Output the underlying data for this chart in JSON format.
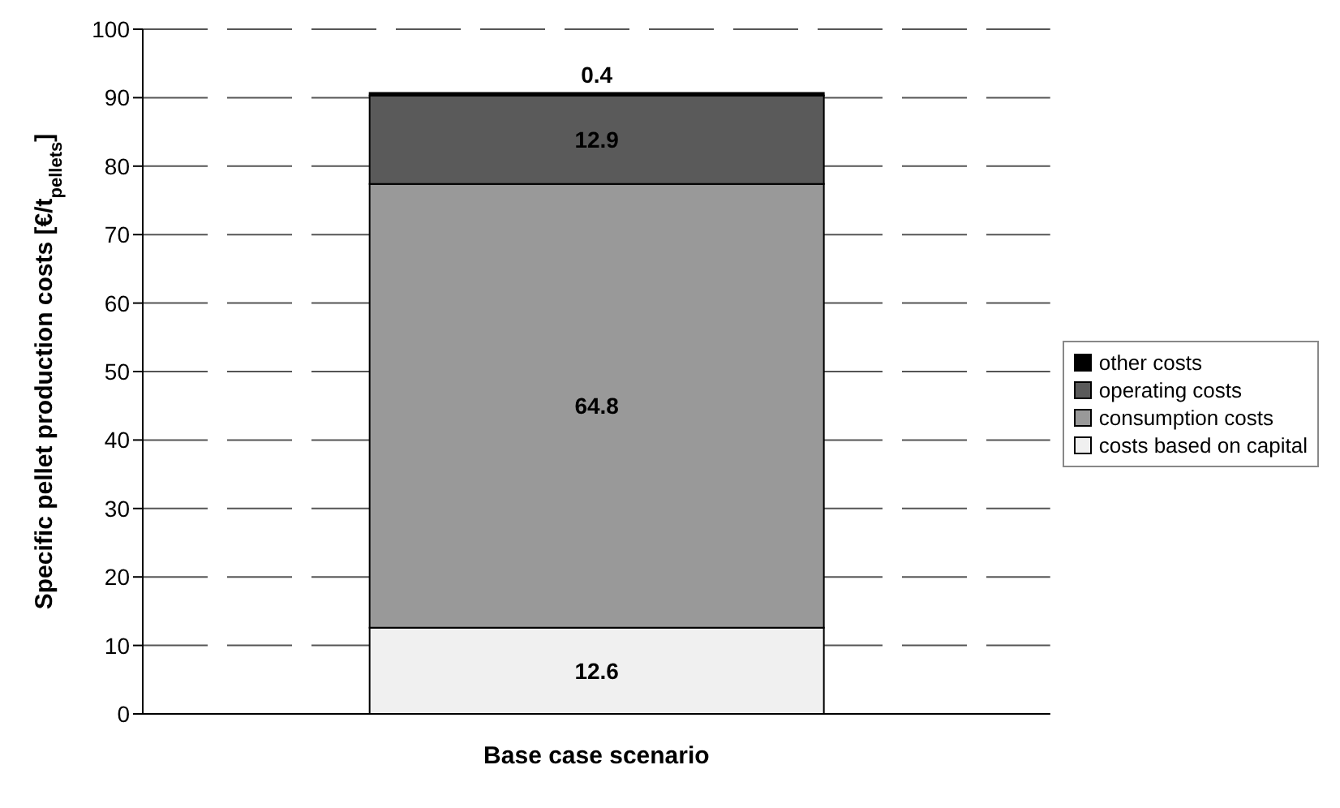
{
  "chart_data": {
    "type": "bar",
    "stacked": true,
    "categories": [
      "Base case scenario"
    ],
    "ylabel": "Specific pellet production costs [€/t$_{pellets}$]",
    "series": [
      {
        "name": "costs based on capital",
        "color": "#f0f0f0",
        "values": [
          12.6
        ]
      },
      {
        "name": "consumption costs",
        "color": "#999999",
        "values": [
          64.8
        ]
      },
      {
        "name": "operating costs",
        "color": "#5a5a5a",
        "values": [
          12.9
        ]
      },
      {
        "name": "other costs",
        "color": "#000000",
        "values": [
          0.4
        ]
      }
    ],
    "ylim": [
      0,
      100
    ],
    "yticks": [
      0,
      10,
      20,
      30,
      40,
      50,
      60,
      70,
      80,
      90,
      100
    ],
    "grid": "y",
    "legend": "right",
    "data_labels": true
  }
}
